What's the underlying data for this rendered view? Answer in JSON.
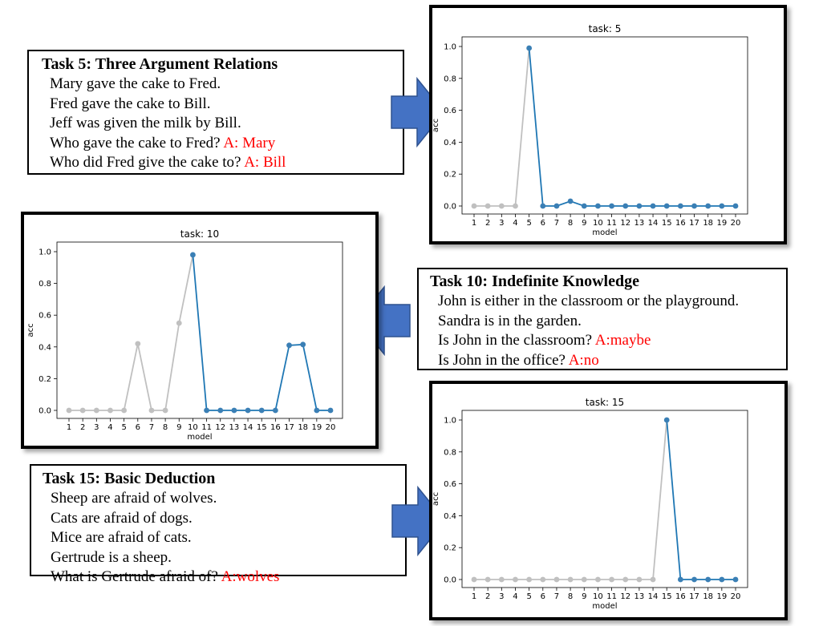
{
  "tasks": [
    {
      "title": "Task 5: Three Argument Relations",
      "lines": [
        {
          "text": "Mary gave the cake to Fred.",
          "answer": ""
        },
        {
          "text": "Fred gave the cake to Bill.",
          "answer": ""
        },
        {
          "text": "Jeff was given the milk by Bill.",
          "answer": ""
        },
        {
          "text": "Who gave the cake to Fred? ",
          "answer": "A: Mary"
        },
        {
          "text": "Who did Fred give the cake to? ",
          "answer": "A: Bill"
        }
      ]
    },
    {
      "title": "Task 10: Indefinite Knowledge",
      "lines": [
        {
          "text": "John is either in the classroom or the playground.",
          "answer": ""
        },
        {
          "text": "Sandra is in the garden.",
          "answer": ""
        },
        {
          "text": "Is John in the classroom? ",
          "answer": "A:maybe"
        },
        {
          "text": "Is John in the office? ",
          "answer": "A:no"
        }
      ]
    },
    {
      "title": "Task 15: Basic Deduction",
      "lines": [
        {
          "text": "Sheep are afraid of wolves.",
          "answer": ""
        },
        {
          "text": "Cats are afraid of dogs.",
          "answer": ""
        },
        {
          "text": "Mice are afraid of cats.",
          "answer": ""
        },
        {
          "text": "Gertrude is a sheep.",
          "answer": ""
        },
        {
          "text": "What is Gertrude afraid of? ",
          "answer": "A:wolves"
        }
      ]
    }
  ],
  "colors": {
    "answer": "#ff0000",
    "arrow": "#4472c4",
    "arrow_edge": "#2f528f",
    "series_before": "#c0c0c0",
    "series_after": "#1f77b4",
    "series_after_marker": "#3a7fb5"
  },
  "chart_data": [
    {
      "type": "line",
      "title": "task: 5",
      "xlabel": "model",
      "ylabel": "acc",
      "x": [
        1,
        2,
        3,
        4,
        5,
        6,
        7,
        8,
        9,
        10,
        11,
        12,
        13,
        14,
        15,
        16,
        17,
        18,
        19,
        20
      ],
      "y": [
        0,
        0,
        0,
        0,
        0.99,
        0,
        0,
        0.03,
        0,
        0,
        0,
        0,
        0,
        0,
        0,
        0,
        0,
        0,
        0,
        0
      ],
      "highlight_from": 5,
      "ylim": [
        0,
        1.0
      ],
      "yticks": [
        "0.0",
        "0.2",
        "0.4",
        "0.6",
        "0.8",
        "1.0"
      ],
      "grid": false
    },
    {
      "type": "line",
      "title": "task: 10",
      "xlabel": "model",
      "ylabel": "acc",
      "x": [
        1,
        2,
        3,
        4,
        5,
        6,
        7,
        8,
        9,
        10,
        11,
        12,
        13,
        14,
        15,
        16,
        17,
        18,
        19,
        20
      ],
      "y": [
        0,
        0,
        0,
        0,
        0,
        0.42,
        0,
        0,
        0.55,
        0.98,
        0,
        0,
        0,
        0,
        0,
        0,
        0.41,
        0.415,
        0,
        0
      ],
      "highlight_from": 10,
      "ylim": [
        0,
        1.0
      ],
      "yticks": [
        "0.0",
        "0.2",
        "0.4",
        "0.6",
        "0.8",
        "1.0"
      ],
      "grid": false
    },
    {
      "type": "line",
      "title": "task: 15",
      "xlabel": "model",
      "ylabel": "acc",
      "x": [
        1,
        2,
        3,
        4,
        5,
        6,
        7,
        8,
        9,
        10,
        11,
        12,
        13,
        14,
        15,
        16,
        17,
        18,
        19,
        20
      ],
      "y": [
        0,
        0,
        0,
        0,
        0,
        0,
        0,
        0,
        0,
        0,
        0,
        0,
        0,
        0,
        1.0,
        0,
        0,
        0,
        0,
        0
      ],
      "highlight_from": 15,
      "ylim": [
        0,
        1.0
      ],
      "yticks": [
        "0.0",
        "0.2",
        "0.4",
        "0.6",
        "0.8",
        "1.0"
      ],
      "grid": false
    }
  ]
}
